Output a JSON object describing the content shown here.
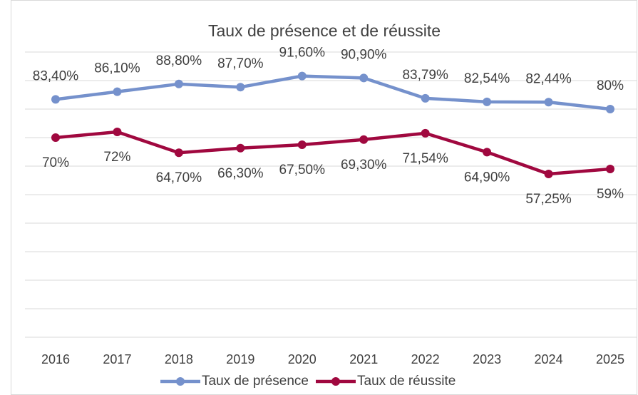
{
  "chart_data": {
    "type": "line",
    "title": "Taux de présence et de réussite",
    "categories": [
      "2016",
      "2017",
      "2018",
      "2019",
      "2020",
      "2021",
      "2022",
      "2023",
      "2024",
      "2025"
    ],
    "series": [
      {
        "name": "Taux de présence",
        "color": "#7591cc",
        "values": [
          83.4,
          86.1,
          88.8,
          87.7,
          91.6,
          90.9,
          83.79,
          82.54,
          82.44,
          80
        ],
        "value_labels": [
          "83,40%",
          "86,10%",
          "88,80%",
          "87,70%",
          "91,60%",
          "90,90%",
          "83,79%",
          "82,54%",
          "82,44%",
          "80%"
        ]
      },
      {
        "name": "Taux de réussite",
        "color": "#a0083f",
        "values": [
          70,
          72,
          64.7,
          66.3,
          67.5,
          69.3,
          71.54,
          64.9,
          57.25,
          59
        ],
        "value_labels": [
          "70%",
          "72%",
          "64,70%",
          "66,30%",
          "67,50%",
          "69,30%",
          "71,54%",
          "64,90%",
          "57,25%",
          "59%"
        ]
      }
    ],
    "ylim": [
      0,
      100
    ],
    "yticks": [
      0,
      10,
      20,
      30,
      40,
      50,
      60,
      70,
      80,
      90,
      100
    ],
    "grid": true,
    "legend": "bottom"
  }
}
